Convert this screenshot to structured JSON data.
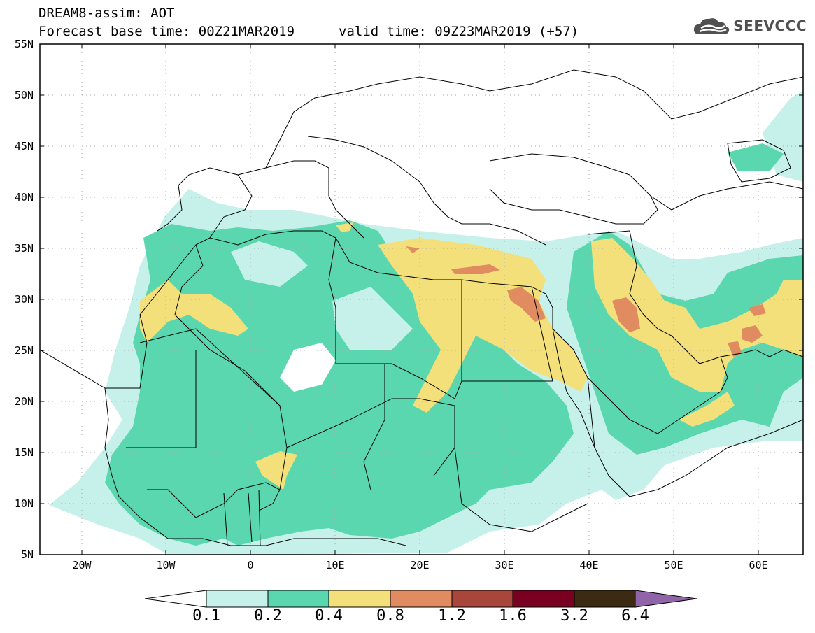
{
  "header": {
    "title": "DREAM8-assim: AOT",
    "base_time": "Forecast base time: 00Z21MAR2019",
    "valid_time": "valid time: 09Z23MAR2019 (+57)"
  },
  "logo": {
    "text": "SEEVCCC",
    "icon": "cloud-logo-icon"
  },
  "map": {
    "lat_labels": [
      "55N",
      "50N",
      "45N",
      "40N",
      "35N",
      "30N",
      "25N",
      "20N",
      "15N",
      "10N",
      "5N"
    ],
    "lon_labels": [
      "20W",
      "10W",
      "0",
      "10E",
      "20E",
      "30E",
      "40E",
      "50E",
      "60E"
    ],
    "lon_range": [
      -25,
      65
    ],
    "lat_range": [
      5,
      55
    ]
  },
  "colorbar": {
    "labels": [
      "0.1",
      "0.2",
      "0.4",
      "0.8",
      "1.2",
      "1.6",
      "3.2",
      "6.4"
    ],
    "colors": [
      "#ffffff",
      "#c6f0ea",
      "#5ad7ae",
      "#f3e07a",
      "#e08b60",
      "#a8463c",
      "#7a0022",
      "#3d2a12",
      "#8f64a8"
    ]
  },
  "palette": {
    "level1": "#c6f0ea",
    "level2": "#5ad7ae",
    "level3": "#f3e07a",
    "level4": "#e08b60",
    "border": "#000000",
    "grid": "#aaaaaa"
  }
}
